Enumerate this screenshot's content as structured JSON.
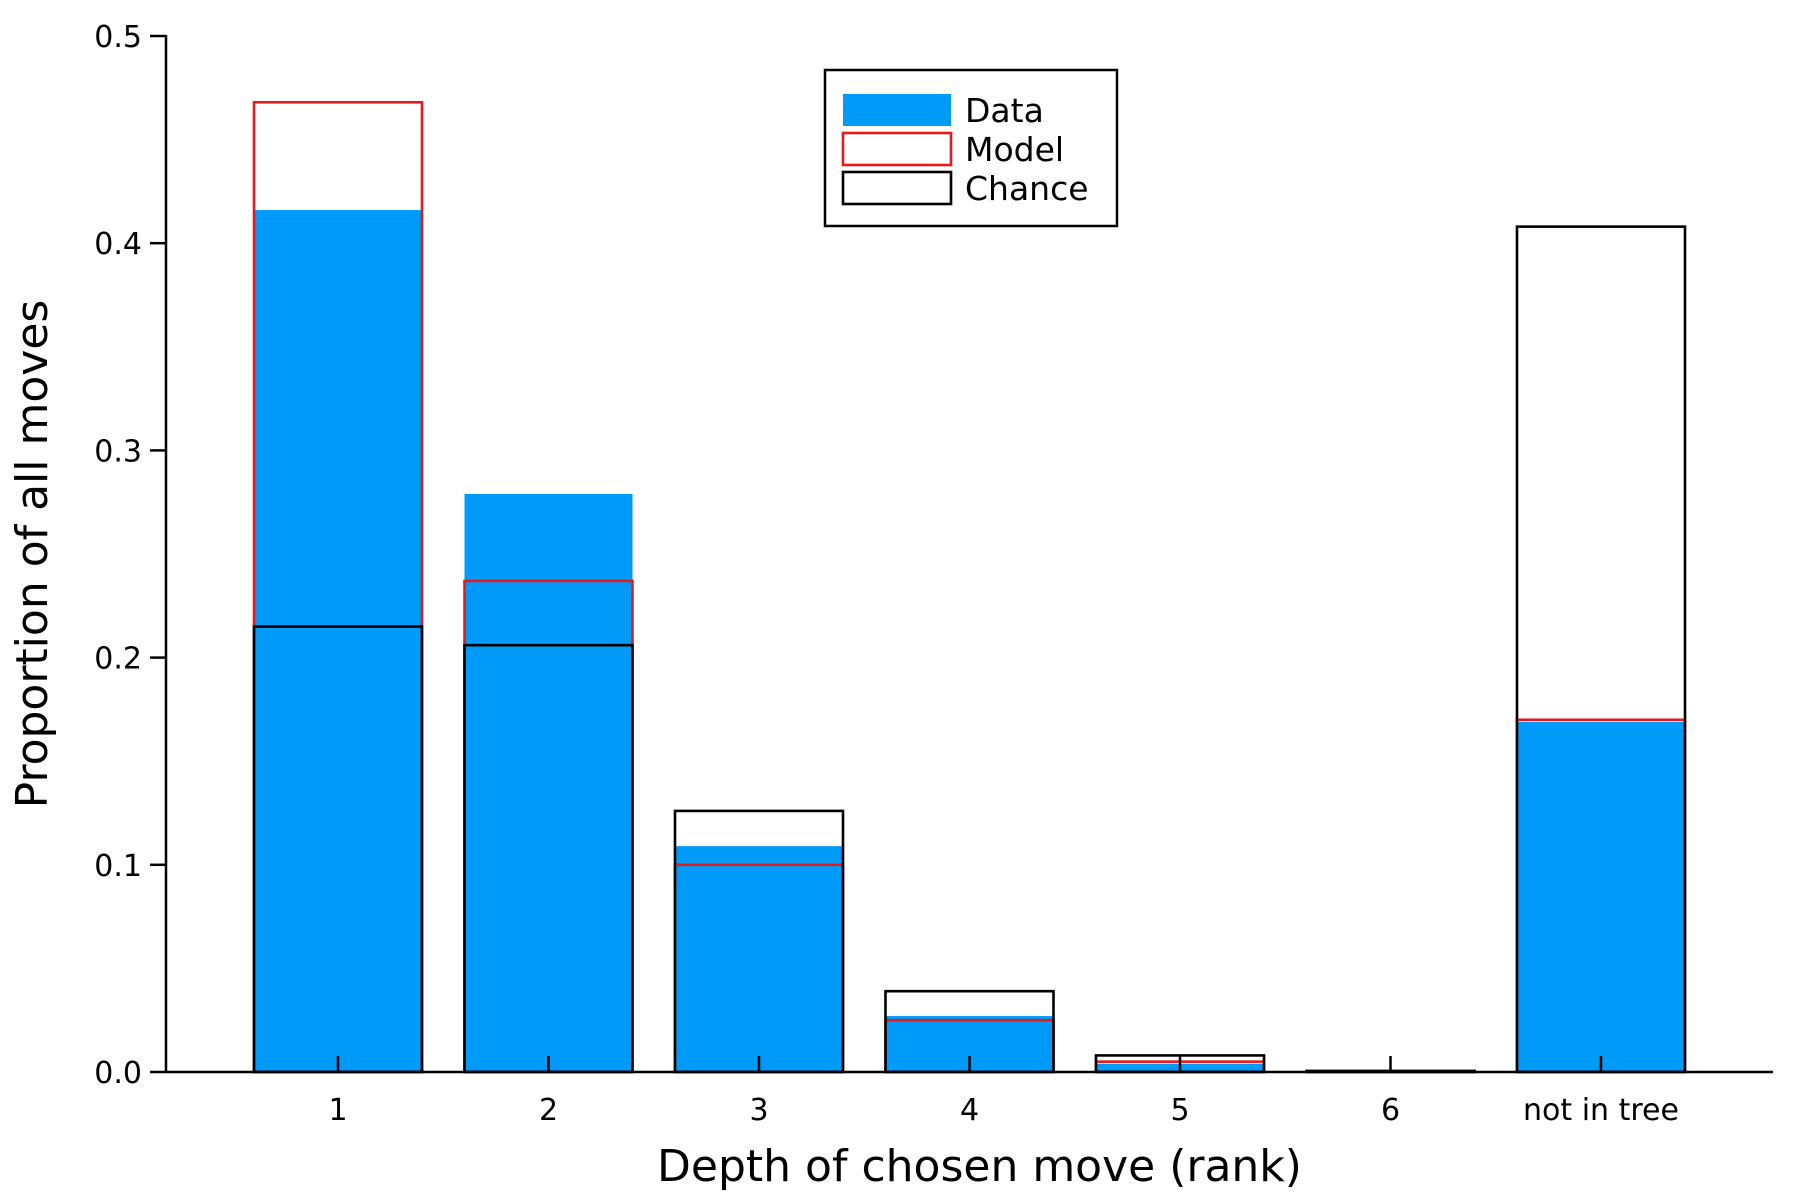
{
  "chart_data": {
    "type": "bar",
    "title": "",
    "xlabel": "Depth of chosen move (rank)",
    "ylabel": "Proportion of all moves",
    "ylim": [
      0,
      0.5
    ],
    "yticks": [
      "0.0",
      "0.1",
      "0.2",
      "0.3",
      "0.4",
      "0.5"
    ],
    "ytick_values": [
      0,
      0.1,
      0.2,
      0.3,
      0.4,
      0.5
    ],
    "categories": [
      "1",
      "2",
      "3",
      "4",
      "5",
      "6",
      "not in tree"
    ],
    "grid": false,
    "legend_position": "top-center",
    "series": [
      {
        "name": "Data",
        "style": "filled",
        "color": "#009af9",
        "values": [
          0.416,
          0.279,
          0.109,
          0.027,
          0.004,
          0.0005,
          0.169
        ]
      },
      {
        "name": "Model",
        "style": "outline",
        "color": "#e41a1c",
        "values": [
          0.468,
          0.237,
          0.1,
          0.025,
          0.005,
          0.0005,
          0.17
        ]
      },
      {
        "name": "Chance",
        "style": "outline",
        "color": "#000000",
        "values": [
          0.215,
          0.206,
          0.126,
          0.039,
          0.008,
          0.0005,
          0.408
        ]
      }
    ]
  }
}
